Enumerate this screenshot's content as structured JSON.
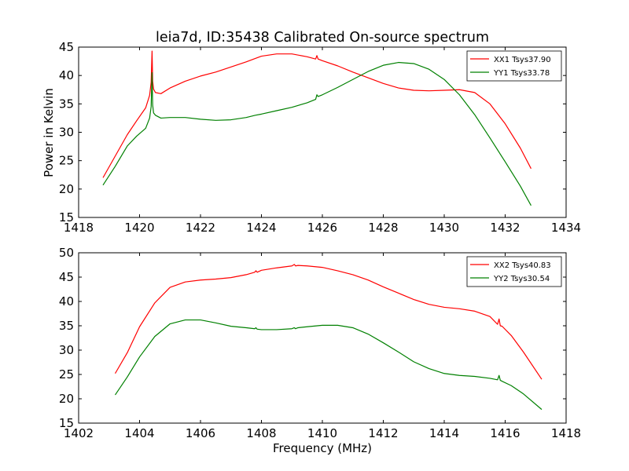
{
  "figure": {
    "title": "leia7d, ID:35438 Calibrated On-source spectrum",
    "xlabel": "Frequency (MHz)",
    "ylabel": "Power in Kelvin"
  },
  "chart_data": [
    {
      "type": "line",
      "title": "leia7d, ID:35438 Calibrated On-source spectrum",
      "xlabel": "",
      "ylabel": "Power in Kelvin",
      "xlim": [
        1418,
        1434
      ],
      "ylim": [
        15,
        45
      ],
      "xticks": [
        1418,
        1420,
        1422,
        1424,
        1426,
        1428,
        1430,
        1432,
        1434
      ],
      "yticks": [
        15,
        20,
        25,
        30,
        35,
        40,
        45
      ],
      "grid": false,
      "legend": "top-right",
      "series": [
        {
          "name": "XX1 Tsys37.90",
          "color": "#ff0000",
          "x": [
            1418.8,
            1419.2,
            1419.6,
            1419.9,
            1420.2,
            1420.33,
            1420.38,
            1420.41,
            1420.43,
            1420.46,
            1420.52,
            1420.7,
            1421.0,
            1421.5,
            1422.0,
            1422.5,
            1423.0,
            1423.5,
            1423.8,
            1424.0,
            1424.5,
            1425.0,
            1425.5,
            1425.78,
            1425.82,
            1425.86,
            1426.0,
            1426.5,
            1427.0,
            1427.5,
            1428.0,
            1428.5,
            1429.0,
            1429.5,
            1430.0,
            1430.5,
            1431.0,
            1431.5,
            1432.0,
            1432.5,
            1432.85
          ],
          "y": [
            22.0,
            25.8,
            29.6,
            32.0,
            34.3,
            36.5,
            38.8,
            44.3,
            39.0,
            37.6,
            37.0,
            36.8,
            37.8,
            39.0,
            39.9,
            40.6,
            41.5,
            42.4,
            43.0,
            43.4,
            43.8,
            43.8,
            43.3,
            42.9,
            43.5,
            42.9,
            42.6,
            41.7,
            40.6,
            39.6,
            38.6,
            37.8,
            37.4,
            37.3,
            37.4,
            37.5,
            37.0,
            35.0,
            31.5,
            27.2,
            23.6
          ]
        },
        {
          "name": "YY1 Tsys33.78",
          "color": "#008000",
          "x": [
            1418.8,
            1419.2,
            1419.6,
            1419.9,
            1420.2,
            1420.33,
            1420.38,
            1420.41,
            1420.43,
            1420.46,
            1420.52,
            1420.7,
            1421.0,
            1421.5,
            1422.0,
            1422.5,
            1423.0,
            1423.5,
            1423.8,
            1424.0,
            1424.5,
            1425.0,
            1425.5,
            1425.78,
            1425.82,
            1425.86,
            1426.0,
            1426.5,
            1427.0,
            1427.5,
            1428.0,
            1428.5,
            1429.0,
            1429.5,
            1430.0,
            1430.5,
            1431.0,
            1431.5,
            1432.0,
            1432.5,
            1432.85
          ],
          "y": [
            20.7,
            24.0,
            27.6,
            29.3,
            30.7,
            32.5,
            34.5,
            40.5,
            34.8,
            33.4,
            33.0,
            32.5,
            32.6,
            32.6,
            32.3,
            32.1,
            32.2,
            32.6,
            33.0,
            33.2,
            33.8,
            34.4,
            35.2,
            35.8,
            36.6,
            36.3,
            36.6,
            37.9,
            39.3,
            40.7,
            41.8,
            42.3,
            42.1,
            41.1,
            39.3,
            36.6,
            33.1,
            29.0,
            24.8,
            20.5,
            17.1
          ]
        }
      ]
    },
    {
      "type": "line",
      "title": "",
      "xlabel": "Frequency (MHz)",
      "ylabel": "",
      "xlim": [
        1402,
        1418
      ],
      "ylim": [
        15,
        50
      ],
      "xticks": [
        1402,
        1404,
        1406,
        1408,
        1410,
        1412,
        1414,
        1416,
        1418
      ],
      "yticks": [
        15,
        20,
        25,
        30,
        35,
        40,
        45,
        50
      ],
      "grid": false,
      "legend": "top-right",
      "series": [
        {
          "name": "XX2 Tsys40.83",
          "color": "#ff0000",
          "x": [
            1403.2,
            1403.6,
            1404.0,
            1404.5,
            1405.0,
            1405.5,
            1406.0,
            1406.5,
            1407.0,
            1407.5,
            1407.78,
            1407.82,
            1407.86,
            1408.0,
            1408.5,
            1409.0,
            1409.08,
            1409.12,
            1409.2,
            1409.5,
            1410.0,
            1410.5,
            1411.0,
            1411.5,
            1412.0,
            1412.5,
            1413.0,
            1413.5,
            1414.0,
            1414.5,
            1415.0,
            1415.5,
            1415.75,
            1415.8,
            1415.84,
            1415.9,
            1416.2,
            1416.6,
            1417.2
          ],
          "y": [
            25.2,
            29.5,
            34.8,
            39.7,
            42.9,
            44.0,
            44.4,
            44.6,
            44.9,
            45.5,
            46.0,
            46.3,
            46.0,
            46.4,
            46.9,
            47.3,
            47.6,
            47.3,
            47.4,
            47.3,
            47.0,
            46.3,
            45.5,
            44.4,
            43.0,
            41.7,
            40.4,
            39.4,
            38.8,
            38.5,
            38.0,
            36.9,
            35.3,
            36.4,
            35.0,
            34.9,
            33.0,
            29.6,
            24.0
          ]
        },
        {
          "name": "YY2 Tsys30.54",
          "color": "#008000",
          "x": [
            1403.2,
            1403.6,
            1404.0,
            1404.5,
            1405.0,
            1405.5,
            1406.0,
            1406.5,
            1407.0,
            1407.5,
            1407.78,
            1407.82,
            1407.86,
            1408.0,
            1408.5,
            1409.0,
            1409.08,
            1409.12,
            1409.2,
            1409.5,
            1410.0,
            1410.5,
            1411.0,
            1411.5,
            1412.0,
            1412.5,
            1413.0,
            1413.5,
            1414.0,
            1414.5,
            1415.0,
            1415.5,
            1415.75,
            1415.8,
            1415.84,
            1415.9,
            1416.2,
            1416.6,
            1417.2
          ],
          "y": [
            20.8,
            24.5,
            28.6,
            32.8,
            35.4,
            36.2,
            36.2,
            35.6,
            34.9,
            34.6,
            34.4,
            34.6,
            34.3,
            34.2,
            34.2,
            34.4,
            34.6,
            34.4,
            34.6,
            34.8,
            35.1,
            35.1,
            34.6,
            33.3,
            31.5,
            29.6,
            27.6,
            26.2,
            25.2,
            24.8,
            24.6,
            24.2,
            23.9,
            24.8,
            23.8,
            23.6,
            22.7,
            21.0,
            17.8
          ]
        }
      ]
    }
  ]
}
